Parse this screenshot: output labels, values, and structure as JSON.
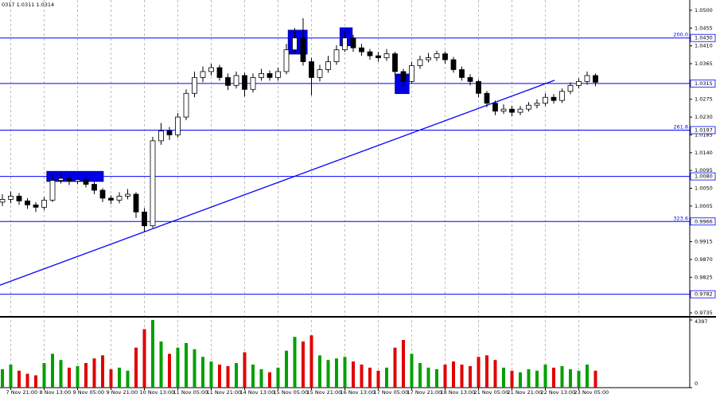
{
  "chart_data": {
    "type": "candlestick",
    "header_text": "0317 1.0311 1.0314",
    "categories": [
      null,
      "7 Nov 21:00",
      null,
      null,
      null,
      "8 Nov 13:00",
      null,
      null,
      null,
      "9 Nov 05:00",
      null,
      null,
      null,
      "9 Nov 21:00",
      null,
      null,
      null,
      "10 Nov 13:00",
      null,
      null,
      null,
      "11 Nov 05:00",
      null,
      null,
      null,
      "11 Nov 21:00",
      null,
      null,
      null,
      "14 Nov 13:00",
      null,
      null,
      null,
      "15 Nov 05:00",
      null,
      null,
      null,
      "15 Nov 21:00",
      null,
      null,
      null,
      "16 Nov 13:00",
      null,
      null,
      null,
      "17 Nov 05:00",
      null,
      null,
      null,
      "17 Nov 21:00",
      null,
      null,
      null,
      "18 Nov 13:00",
      null,
      null,
      null,
      "21 Nov 05:00",
      null,
      null,
      null,
      "21 Nov 21:00",
      null,
      null,
      null,
      "22 Nov 13:00",
      null,
      null,
      null,
      "23 Nov 05:00",
      null,
      null
    ],
    "open": [
      1.0015,
      1.0022,
      1.003,
      1.0018,
      1.0008,
      1.0002,
      1.002,
      1.007,
      1.0075,
      1.0068,
      1.0072,
      1.006,
      1.0045,
      1.0025,
      1.002,
      1.003,
      1.0035,
      0.999,
      0.9955,
      1.017,
      1.0195,
      1.0185,
      1.023,
      1.029,
      1.033,
      1.0345,
      1.0355,
      1.033,
      1.031,
      1.0335,
      1.03,
      1.033,
      1.034,
      1.033,
      1.0345,
      1.04,
      1.043,
      1.037,
      1.033,
      1.035,
      1.037,
      1.04,
      1.043,
      1.0405,
      1.0395,
      1.0385,
      1.038,
      1.039,
      1.0345,
      1.032,
      1.036,
      1.0375,
      1.038,
      1.039,
      1.0375,
      1.035,
      1.033,
      1.032,
      1.029,
      1.0265,
      1.0245,
      1.025,
      1.0242,
      1.025,
      1.026,
      1.0265,
      1.028,
      1.0272,
      1.0295,
      1.031,
      1.032,
      1.0335
    ],
    "high": [
      1.0035,
      1.0042,
      1.0038,
      1.0025,
      1.0015,
      1.0028,
      1.0085,
      1.0088,
      1.0085,
      1.0082,
      1.008,
      1.0066,
      1.005,
      1.0032,
      1.004,
      1.0048,
      1.004,
      1.0,
      1.018,
      1.0215,
      1.0205,
      1.024,
      1.03,
      1.0345,
      1.0358,
      1.0365,
      1.0362,
      1.034,
      1.0345,
      1.0342,
      1.034,
      1.0352,
      1.0348,
      1.0355,
      1.0415,
      1.0455,
      1.048,
      1.038,
      1.0362,
      1.0385,
      1.0412,
      1.0445,
      1.0438,
      1.0415,
      1.0402,
      1.0395,
      1.0402,
      1.0395,
      1.0352,
      1.037,
      1.0385,
      1.0392,
      1.0398,
      1.0396,
      1.0382,
      1.0358,
      1.0338,
      1.0325,
      1.0296,
      1.0272,
      1.0262,
      1.0258,
      1.0258,
      1.0268,
      1.0275,
      1.029,
      1.0288,
      1.0302,
      1.0318,
      1.0328,
      1.0345,
      1.034
    ],
    "low": [
      1.0005,
      1.0012,
      1.0008,
      0.9998,
      0.999,
      0.9995,
      1.0015,
      1.0062,
      1.0058,
      1.006,
      1.0052,
      1.0035,
      1.0015,
      1.001,
      1.0012,
      1.0022,
      0.9975,
      0.994,
      0.995,
      1.016,
      1.0172,
      1.0178,
      1.0222,
      1.028,
      1.0318,
      1.0335,
      1.0322,
      1.0298,
      1.0302,
      1.0282,
      1.0292,
      1.0322,
      1.0322,
      1.0322,
      1.0338,
      1.0392,
      1.036,
      1.0285,
      1.032,
      1.0342,
      1.0362,
      1.0395,
      1.0395,
      1.0385,
      1.0375,
      1.037,
      1.0372,
      1.0335,
      1.031,
      1.0315,
      1.0352,
      1.0368,
      1.0372,
      1.0365,
      1.0342,
      1.0322,
      1.031,
      1.028,
      1.0255,
      1.0235,
      1.0238,
      1.0232,
      1.0235,
      1.0244,
      1.0252,
      1.0258,
      1.0264,
      1.0266,
      1.0288,
      1.0302,
      1.0312,
      1.0308
    ],
    "close": [
      1.0022,
      1.003,
      1.0018,
      1.0008,
      1.0002,
      1.002,
      1.007,
      1.0075,
      1.0068,
      1.0072,
      1.006,
      1.0045,
      1.0025,
      1.002,
      1.003,
      1.0035,
      0.999,
      0.9955,
      1.017,
      1.0195,
      1.0185,
      1.023,
      1.029,
      1.033,
      1.0345,
      1.0355,
      1.033,
      1.031,
      1.0335,
      1.03,
      1.033,
      1.034,
      1.033,
      1.0345,
      1.04,
      1.043,
      1.037,
      1.033,
      1.035,
      1.037,
      1.04,
      1.043,
      1.0405,
      1.0395,
      1.0385,
      1.038,
      1.039,
      1.0345,
      1.032,
      1.036,
      1.0375,
      1.038,
      1.039,
      1.0375,
      1.035,
      1.033,
      1.032,
      1.029,
      1.0265,
      1.0245,
      1.025,
      1.0242,
      1.025,
      1.026,
      1.0265,
      1.028,
      1.0272,
      1.0295,
      1.031,
      1.032,
      1.0335,
      1.0318
    ],
    "volume": [
      1200,
      1500,
      1100,
      900,
      800,
      1600,
      2200,
      1800,
      1300,
      1400,
      1600,
      1900,
      2100,
      1200,
      1300,
      1100,
      2600,
      3800,
      4397,
      3000,
      2200,
      2600,
      2900,
      2500,
      2000,
      1700,
      1500,
      1400,
      1600,
      2300,
      1500,
      1200,
      1000,
      1300,
      2400,
      3300,
      3000,
      3400,
      2100,
      1800,
      1900,
      2000,
      1700,
      1500,
      1300,
      1100,
      1300,
      2600,
      3100,
      2200,
      1600,
      1300,
      1200,
      1500,
      1700,
      1500,
      1400,
      2000,
      2100,
      1800,
      1300,
      1100,
      1000,
      1200,
      1100,
      1500,
      1300,
      1400,
      1200,
      1100,
      1500,
      1100
    ],
    "candle_up_color": "#ffffff",
    "candle_down_color": "#000000",
    "volume_up_color": "#00a000",
    "volume_down_color": "#e00000",
    "ylim": [
      0.9725,
      1.0526
    ],
    "yticks": [
      {
        "value": 1.05,
        "label": "1.0500"
      },
      {
        "value": 1.0455,
        "label": "1.0455"
      },
      {
        "value": 1.041,
        "label": "1.0410"
      },
      {
        "value": 1.0365,
        "label": "1.0365"
      },
      {
        "value": 1.0275,
        "label": "1.0275"
      },
      {
        "value": 1.023,
        "label": "1.0230"
      },
      {
        "value": 1.0185,
        "label": "1.0185"
      },
      {
        "value": 1.014,
        "label": "1.0140"
      },
      {
        "value": 1.0095,
        "label": "1.0095"
      },
      {
        "value": 1.005,
        "label": "1.0050"
      },
      {
        "value": 1.0005,
        "label": "1.0005"
      },
      {
        "value": 0.9915,
        "label": "0.9915"
      },
      {
        "value": 0.987,
        "label": "0.9870"
      },
      {
        "value": 0.9825,
        "label": "0.9825"
      },
      {
        "value": 0.9735,
        "label": "0.9735"
      }
    ],
    "volume_ylim": [
      0,
      4397
    ],
    "volume_yticks": [
      0,
      4397
    ],
    "levels": [
      {
        "value": 1.043,
        "label": "1.0430",
        "fib_label": "200.0"
      },
      {
        "value": 1.0315,
        "label": "1.0315"
      },
      {
        "value": 1.0197,
        "label": "1.0197",
        "fib_label": "261.8"
      },
      {
        "value": 1.008,
        "label": "1.0080"
      },
      {
        "value": 0.9966,
        "label": "0.9966",
        "fib_label": "323.6"
      },
      {
        "value": 0.9782,
        "label": "0.9782"
      }
    ],
    "level_color": "#0000ff",
    "trendline": {
      "x": [
        -0.3,
        66.1
      ],
      "y": [
        0.9805,
        1.0323
      ]
    },
    "zones": [
      {
        "from": 5.3,
        "to": 12.1,
        "top": 1.0093,
        "bottom": 1.0067
      },
      {
        "from": 34.2,
        "to": 36.5,
        "top": 1.045,
        "bottom": 1.0389
      },
      {
        "from": 40.4,
        "to": 41.9,
        "top": 1.0456,
        "bottom": 1.041
      },
      {
        "from": 47,
        "to": 48.7,
        "top": 1.0339,
        "bottom": 1.0289
      }
    ],
    "zone_color": "#0000e0"
  }
}
